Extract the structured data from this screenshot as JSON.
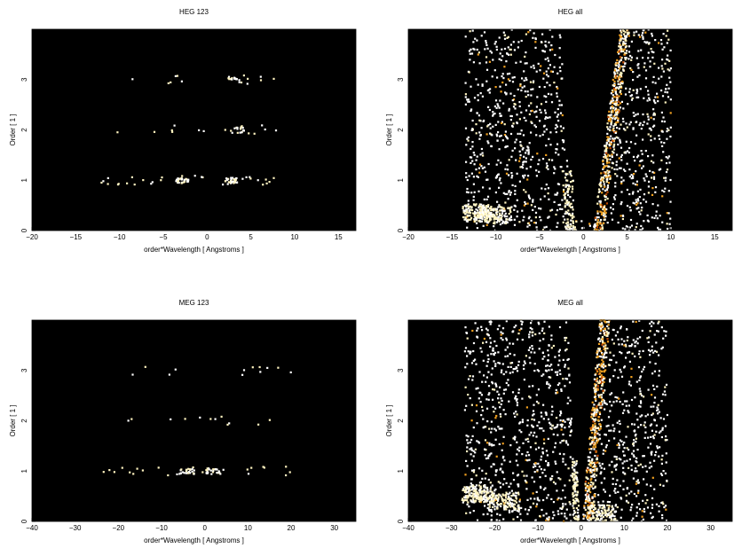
{
  "chart_data": [
    {
      "type": "heatmap",
      "title": "HEG 123",
      "xlabel": "order*Wavelength [ Angstroms ]",
      "ylabel": "Order [ 1 ]",
      "xlim": [
        -20,
        17
      ],
      "ylim": [
        0,
        4
      ],
      "xticks": [
        -20,
        -15,
        -10,
        -5,
        0,
        5,
        10,
        15
      ],
      "yticks": [
        0,
        1,
        2,
        3
      ],
      "background": "#000000",
      "colormap": [
        "#000000",
        "#6b1a00",
        "#c04a00",
        "#f0a020",
        "#fff4c0",
        "#ffffff"
      ],
      "bands": [
        {
          "order": 1,
          "x_range": [
            -13,
            9
          ],
          "density": 0.55
        },
        {
          "order": 2,
          "x_range": [
            -12,
            8
          ],
          "density": 0.25
        },
        {
          "order": 3,
          "x_range": [
            -11,
            8
          ],
          "density": 0.2
        }
      ],
      "clusters": [
        {
          "x": -2.7,
          "y": 1.0,
          "intensity": 0.9
        },
        {
          "x": 2.7,
          "y": 1.0,
          "intensity": 0.9
        },
        {
          "x": 3.5,
          "y": 2.0,
          "intensity": 0.5
        },
        {
          "x": 3.2,
          "y": 3.0,
          "intensity": 0.5
        }
      ]
    },
    {
      "type": "heatmap",
      "title": "HEG all",
      "xlabel": "order*Wavelength [ Angstroms ]",
      "ylabel": "Order [ 1 ]",
      "xlim": [
        -20,
        17
      ],
      "ylim": [
        0,
        4
      ],
      "xticks": [
        -20,
        -15,
        -10,
        -5,
        0,
        5,
        10,
        15
      ],
      "yticks": [
        0,
        1,
        2,
        3
      ],
      "background": "#000000",
      "colormap": [
        "#000000",
        "#6b1a00",
        "#c04a00",
        "#f0a020",
        "#fff4c0",
        "#ffffff"
      ],
      "scatter_region": {
        "x_range": [
          -13.5,
          10
        ],
        "y_range": [
          0,
          4
        ]
      },
      "dense_arm_right": {
        "x_at_y0": 1.5,
        "x_at_y4": 4.5
      },
      "dense_arm_left": {
        "x_at_y0": -1.5,
        "x_at_y4": -2.5
      },
      "blobs": [
        {
          "x": -12,
          "y": 0.35,
          "intensity": 0.95
        },
        {
          "x": -10,
          "y": 0.3,
          "intensity": 0.7
        }
      ]
    },
    {
      "type": "heatmap",
      "title": "MEG 123",
      "xlabel": "order*Wavelength [ Angstroms ]",
      "ylabel": "Order [ 1 ]",
      "xlim": [
        -40,
        35
      ],
      "ylim": [
        0,
        4
      ],
      "xticks": [
        -40,
        -30,
        -20,
        -10,
        0,
        10,
        20,
        30
      ],
      "yticks": [
        0,
        1,
        2,
        3
      ],
      "background": "#000000",
      "colormap": [
        "#000000",
        "#6b1a00",
        "#c04a00",
        "#f0a020",
        "#fff4c0",
        "#ffffff"
      ],
      "bands": [
        {
          "order": 1,
          "x_range": [
            -25,
            20
          ],
          "density": 0.4
        },
        {
          "order": 2,
          "x_range": [
            -22,
            20
          ],
          "density": 0.2
        },
        {
          "order": 3,
          "x_range": [
            -22,
            20
          ],
          "density": 0.2
        }
      ],
      "clusters": [
        {
          "x": -4,
          "y": 1.0,
          "intensity": 0.8
        },
        {
          "x": 2,
          "y": 1.0,
          "intensity": 0.8
        }
      ]
    },
    {
      "type": "heatmap",
      "title": "MEG all",
      "xlabel": "order*Wavelength [ Angstroms ]",
      "ylabel": "Order [ 1 ]",
      "xlim": [
        -40,
        35
      ],
      "ylim": [
        0,
        4
      ],
      "xticks": [
        -40,
        -30,
        -20,
        -10,
        0,
        10,
        20,
        30
      ],
      "yticks": [
        0,
        1,
        2,
        3
      ],
      "background": "#000000",
      "colormap": [
        "#000000",
        "#6b1a00",
        "#c04a00",
        "#f0a020",
        "#fff4c0",
        "#ffffff"
      ],
      "scatter_region": {
        "x_range": [
          -27,
          20
        ],
        "y_range": [
          0,
          4
        ]
      },
      "dense_arm_right": {
        "x_at_y0": 1,
        "x_at_y4": 5
      },
      "dense_arm_left": {
        "x_at_y0": -1,
        "x_at_y4": -3
      },
      "blobs": [
        {
          "x": -24,
          "y": 0.55,
          "intensity": 0.95
        },
        {
          "x": -18,
          "y": 0.4,
          "intensity": 0.8
        },
        {
          "x": 5,
          "y": 0.15,
          "intensity": 0.8
        }
      ]
    }
  ]
}
